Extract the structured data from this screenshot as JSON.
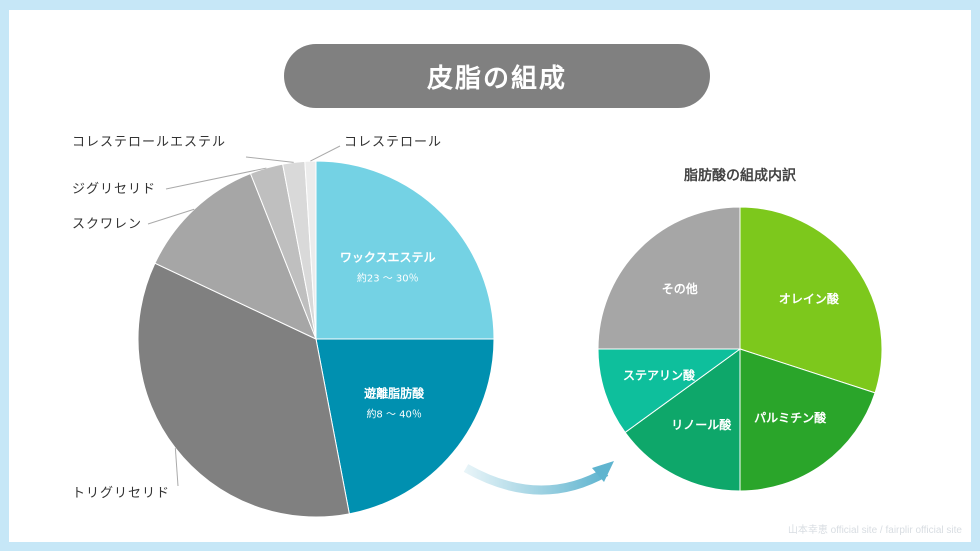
{
  "colors": {
    "frame_border": "#c6e7f7",
    "title_bg": "#808080",
    "arrow": "#5fb4cf"
  },
  "title": "皮脂の組成",
  "watermark": "山本幸恵 official site / fairplir official site",
  "chart_data": [
    {
      "type": "pie",
      "title": "",
      "series": [
        {
          "label": "ワックスエステル",
          "sublabel": "約23 〜 30％",
          "value": 25,
          "color": "#74d2e4",
          "label_inside": true
        },
        {
          "label": "遊離脂肪酸",
          "sublabel": "約8 〜 40％",
          "value": 22,
          "color": "#0090b0",
          "label_inside": true
        },
        {
          "label": "トリグリセリド",
          "value": 35,
          "color": "#808080",
          "label_inside": false
        },
        {
          "label": "スクワレン",
          "value": 12,
          "color": "#a6a6a6",
          "label_inside": false
        },
        {
          "label": "ジグリセリド",
          "value": 3,
          "color": "#bfbfbf",
          "label_inside": false
        },
        {
          "label": "コレステロールエステル",
          "value": 2,
          "color": "#d9d9d9",
          "label_inside": false
        },
        {
          "label": "コレステロール",
          "value": 1,
          "color": "#ececec",
          "label_inside": false
        }
      ]
    },
    {
      "type": "pie",
      "title": "脂肪酸の組成内訳",
      "series": [
        {
          "label": "オレイン酸",
          "value": 30,
          "color": "#7dc81c",
          "label_inside": true
        },
        {
          "label": "パルミチン酸",
          "value": 20,
          "color": "#2aa52a",
          "label_inside": true
        },
        {
          "label": "リノール酸",
          "value": 15,
          "color": "#0ea76a",
          "label_inside": true
        },
        {
          "label": "ステアリン酸",
          "value": 10,
          "color": "#0ebf9c",
          "label_inside": true
        },
        {
          "label": "その他",
          "value": 25,
          "color": "#a6a6a6",
          "label_inside": true
        }
      ]
    }
  ]
}
